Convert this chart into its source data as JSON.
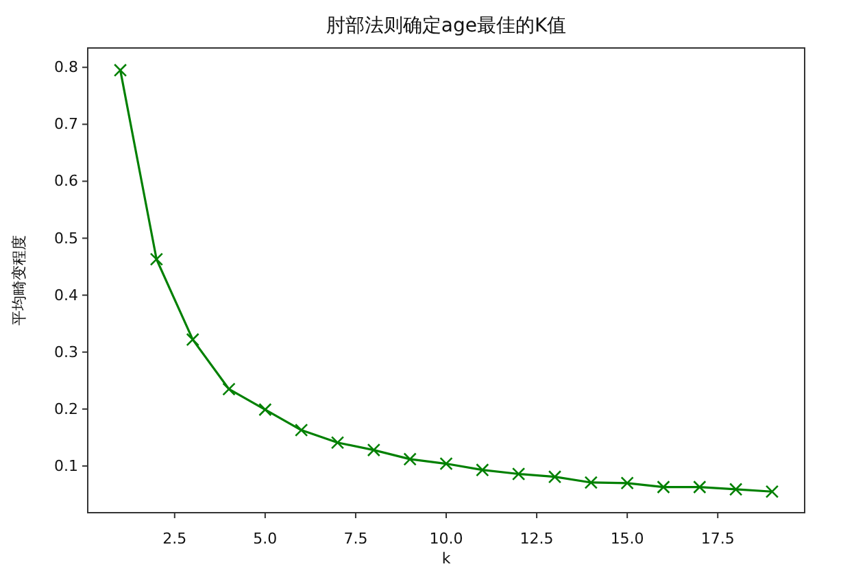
{
  "chart_data": {
    "type": "line",
    "title": "肘部法则确定age最佳的K值",
    "xlabel": "k",
    "ylabel": "平均畸变程度",
    "x": [
      1,
      2,
      3,
      4,
      5,
      6,
      7,
      8,
      9,
      10,
      11,
      12,
      13,
      14,
      15,
      16,
      17,
      18,
      19
    ],
    "series": [
      {
        "color": "#008000",
        "values": [
          0.795,
          0.463,
          0.322,
          0.235,
          0.199,
          0.163,
          0.141,
          0.128,
          0.112,
          0.104,
          0.093,
          0.086,
          0.081,
          0.071,
          0.07,
          0.063,
          0.063,
          0.059,
          0.055
        ]
      }
    ],
    "xlim": [
      0.1,
      19.9
    ],
    "ylim": [
      0.018,
      0.834
    ],
    "xticks": [
      2.5,
      {
        "value": 5,
        "label": "5.0"
      },
      7.5,
      {
        "value": 10,
        "label": "10.0"
      },
      12.5,
      {
        "value": 15,
        "label": "15.0"
      },
      17.5
    ],
    "yticks": [
      0.1,
      0.2,
      0.3,
      0.4,
      0.5,
      0.6,
      0.7,
      0.8
    ],
    "marker": "cross",
    "line_style": "solid"
  }
}
